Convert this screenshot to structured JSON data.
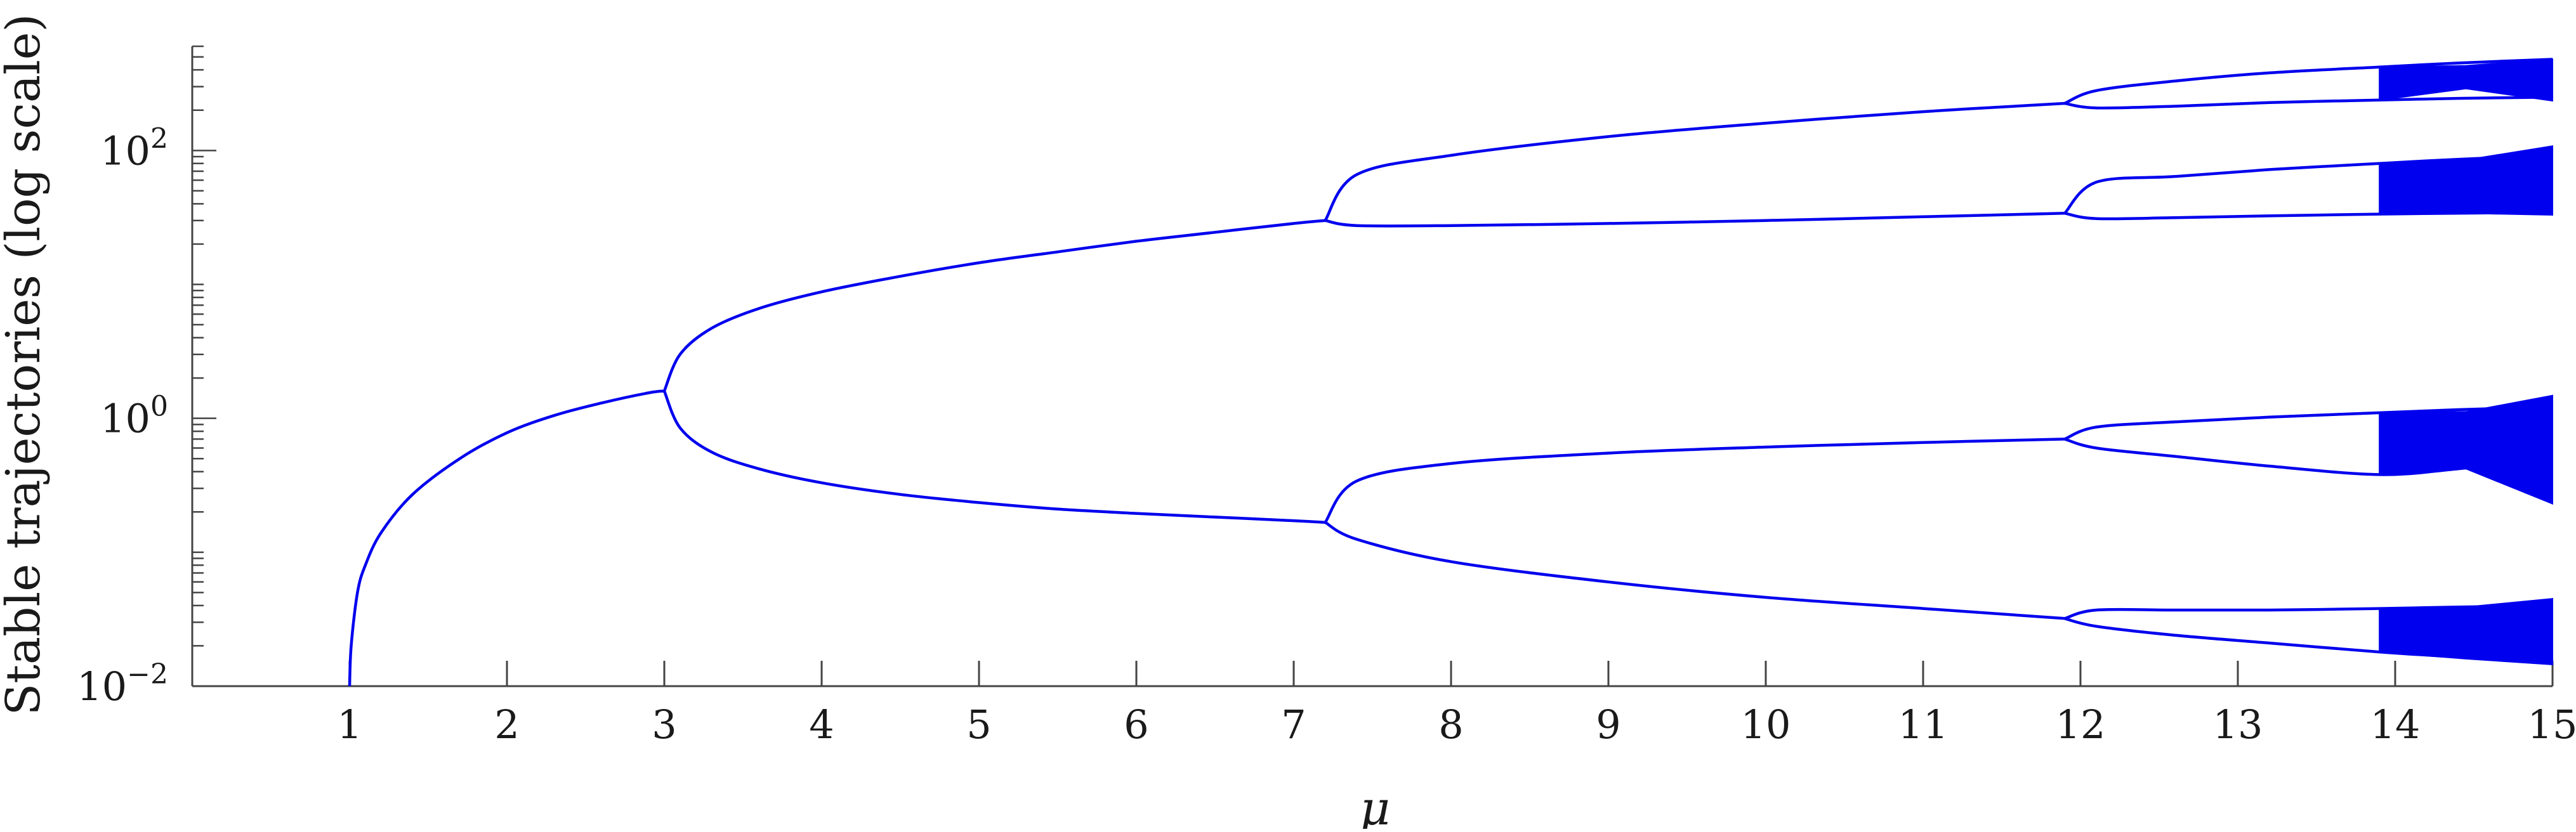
{
  "chart_data": {
    "type": "line",
    "xlabel": "μ",
    "ylabel": "Stable trajectories (log scale)",
    "y_scale": "log",
    "xlim": [
      0,
      15
    ],
    "ylim": [
      0.01,
      600
    ],
    "x_ticks": [
      1,
      2,
      3,
      4,
      5,
      6,
      7,
      8,
      9,
      10,
      11,
      12,
      13,
      14,
      15
    ],
    "x_tick_labels": [
      "1",
      "2",
      "3",
      "4",
      "5",
      "6",
      "7",
      "8",
      "9",
      "10",
      "11",
      "12",
      "13",
      "14",
      "15"
    ],
    "y_ticks": [
      {
        "value": 0.01,
        "base": "10",
        "exp": "−2"
      },
      {
        "value": 1,
        "base": "10",
        "exp": "0"
      },
      {
        "value": 100,
        "base": "10",
        "exp": "2"
      }
    ],
    "series_color": "#0000ee",
    "grid": false,
    "branches": [
      {
        "x": [
          1.0,
          1.01,
          1.05,
          1.1,
          1.2,
          1.4,
          1.7,
          2.0,
          2.3,
          2.6,
          2.9,
          3.0
        ],
        "y": [
          0.01,
          0.02,
          0.05,
          0.08,
          0.14,
          0.27,
          0.5,
          0.78,
          1.05,
          1.3,
          1.55,
          1.6
        ]
      },
      {
        "x": [
          3.0,
          3.1,
          3.3,
          3.6,
          4.0,
          4.5,
          5.0,
          5.5,
          6.0,
          6.5,
          7.0,
          7.2
        ],
        "y": [
          1.6,
          3.0,
          4.7,
          6.6,
          8.8,
          11.5,
          14.5,
          17.5,
          21.0,
          24.5,
          28.5,
          30.0
        ]
      },
      {
        "x": [
          3.0,
          3.1,
          3.3,
          3.6,
          4.0,
          4.5,
          5.0,
          5.5,
          6.0,
          6.5,
          7.0,
          7.2
        ],
        "y": [
          1.6,
          0.85,
          0.56,
          0.42,
          0.33,
          0.27,
          0.235,
          0.21,
          0.195,
          0.183,
          0.172,
          0.167
        ]
      },
      {
        "x": [
          7.2,
          7.4,
          8.0,
          9.0,
          10.0,
          11.0,
          11.9
        ],
        "y": [
          30.0,
          66.0,
          92.0,
          127.0,
          160.0,
          195.0,
          225.0
        ]
      },
      {
        "x": [
          7.2,
          7.4,
          8.0,
          9.0,
          10.0,
          11.0,
          11.9
        ],
        "y": [
          30.0,
          27.5,
          27.5,
          28.5,
          30.0,
          32.0,
          34.0
        ]
      },
      {
        "x": [
          7.2,
          7.4,
          8.0,
          9.0,
          10.0,
          11.0,
          11.9
        ],
        "y": [
          0.167,
          0.34,
          0.46,
          0.55,
          0.61,
          0.66,
          0.7
        ]
      },
      {
        "x": [
          7.2,
          7.4,
          8.0,
          9.0,
          10.0,
          11.0,
          11.9
        ],
        "y": [
          0.167,
          0.125,
          0.085,
          0.06,
          0.046,
          0.038,
          0.032
        ]
      },
      {
        "x": [
          11.9,
          12.1,
          12.6,
          13.2,
          13.9,
          14.4,
          15.0
        ],
        "y": [
          225.0,
          280.0,
          330.0,
          380.0,
          420.0,
          450.0,
          480.0
        ]
      },
      {
        "x": [
          11.9,
          12.1,
          12.6,
          13.2,
          13.9,
          14.4,
          15.0
        ],
        "y": [
          225.0,
          208.0,
          214.0,
          228.0,
          238.0,
          245.0,
          250.0
        ]
      },
      {
        "x": [
          11.9,
          12.1,
          12.6,
          13.2,
          13.9,
          14.4,
          15.0
        ],
        "y": [
          34.0,
          58.0,
          64.0,
          72.0,
          80.0,
          86.0,
          92.0
        ]
      },
      {
        "x": [
          11.9,
          12.1,
          12.6,
          13.2,
          13.9,
          14.4,
          15.0
        ],
        "y": [
          34.0,
          31.0,
          31.5,
          32.5,
          33.5,
          34.0,
          34.5
        ]
      },
      {
        "x": [
          11.9,
          12.1,
          12.6,
          13.2,
          13.9,
          14.4,
          15.0
        ],
        "y": [
          0.7,
          0.86,
          0.94,
          1.02,
          1.1,
          1.16,
          1.22
        ]
      },
      {
        "x": [
          11.9,
          12.1,
          12.6,
          13.2,
          13.9,
          14.4,
          15.0
        ],
        "y": [
          0.7,
          0.6,
          0.52,
          0.44,
          0.38,
          0.42,
          0.5
        ]
      },
      {
        "x": [
          11.9,
          12.1,
          12.6,
          13.2,
          13.9,
          14.4,
          15.0
        ],
        "y": [
          0.032,
          0.037,
          0.037,
          0.037,
          0.038,
          0.039,
          0.04
        ]
      },
      {
        "x": [
          11.9,
          12.1,
          12.6,
          13.2,
          13.9,
          14.4,
          15.0
        ],
        "y": [
          0.032,
          0.028,
          0.024,
          0.021,
          0.018,
          0.0165,
          0.015
        ]
      }
    ],
    "chaotic_bands": [
      {
        "x_start": 13.9,
        "x_end": 15.0,
        "upper": [
          420.0,
          430.0,
          480.0
        ],
        "lower": [
          238.0,
          290.0,
          235.0
        ]
      },
      {
        "x_start": 13.9,
        "x_end": 15.0,
        "upper": [
          80.0,
          85.0,
          108.0
        ],
        "lower": [
          33.5,
          34.0,
          33.0
        ]
      },
      {
        "x_start": 13.9,
        "x_end": 15.0,
        "upper": [
          1.1,
          1.12,
          1.48
        ],
        "lower": [
          0.38,
          0.42,
          0.23
        ]
      },
      {
        "x_start": 13.9,
        "x_end": 15.0,
        "upper": [
          0.038,
          0.039,
          0.045
        ],
        "lower": [
          0.018,
          0.016,
          0.0145
        ]
      }
    ]
  }
}
